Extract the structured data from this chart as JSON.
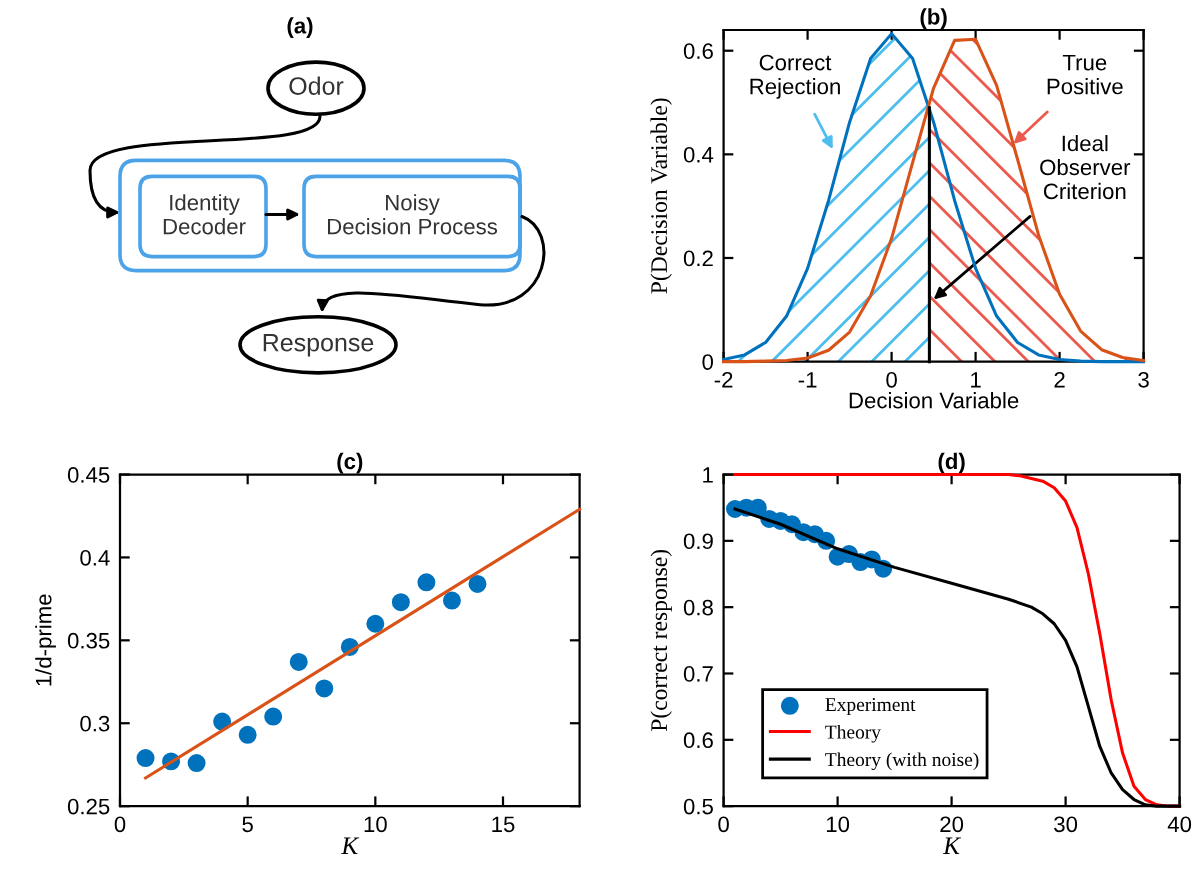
{
  "chart_data": [
    {
      "type": "other",
      "title": "(a)",
      "annotations": [
        "Odor",
        "Identity Decoder",
        "Noisy Decision Process",
        "Response"
      ]
    },
    {
      "type": "line",
      "title": "(b)",
      "xlabel": "Decision Variable",
      "ylabel": "P(Decision Variable)",
      "xlim": [
        -2,
        3
      ],
      "xticks": [
        -2,
        -1,
        0,
        1,
        2,
        3
      ],
      "ylim": [
        0,
        0.64
      ],
      "yticks": [
        0,
        0.2,
        0.4,
        0.6
      ],
      "grid": false,
      "legend": false,
      "series": [
        {
          "type": "area",
          "color": "#4dbeee",
          "x": [
            -2,
            -1.75,
            -1.5,
            -1.25,
            -1,
            -0.75,
            -0.5,
            -0.25,
            0,
            0.25,
            0.45
          ],
          "values": [
            0.004,
            0.013,
            0.037,
            0.088,
            0.18,
            0.311,
            0.462,
            0.585,
            0.633,
            0.585,
            0.49
          ]
        },
        {
          "type": "area",
          "color": "#ec5a4f",
          "x": [
            0.45,
            0.5,
            0.75,
            1,
            1.25,
            1.5,
            1.75,
            2,
            2.25,
            2.5,
            2.75,
            3
          ],
          "values": [
            0.49,
            0.528,
            0.62,
            0.622,
            0.533,
            0.39,
            0.244,
            0.13,
            0.059,
            0.023,
            0.008,
            0.002
          ]
        },
        {
          "type": "line",
          "color": "#0072bd",
          "x": [
            -2,
            -1.75,
            -1.5,
            -1.25,
            -1,
            -0.75,
            -0.5,
            -0.25,
            0,
            0.25,
            0.5,
            0.75,
            1,
            1.25,
            1.5,
            1.75,
            2,
            2.25,
            2.5,
            3
          ],
          "values": [
            0.004,
            0.013,
            0.037,
            0.088,
            0.18,
            0.311,
            0.462,
            0.585,
            0.633,
            0.585,
            0.462,
            0.311,
            0.18,
            0.088,
            0.037,
            0.013,
            0.004,
            0.001,
            0,
            0
          ]
        },
        {
          "type": "line",
          "color": "#d95319",
          "x": [
            -2,
            -1.75,
            -1.5,
            -1.25,
            -1,
            -0.75,
            -0.5,
            -0.25,
            0,
            0.25,
            0.5,
            0.75,
            1,
            1.25,
            1.5,
            1.75,
            2,
            2.25,
            2.5,
            2.75,
            3
          ],
          "values": [
            0,
            0,
            0.001,
            0.002,
            0.007,
            0.022,
            0.057,
            0.127,
            0.238,
            0.384,
            0.528,
            0.62,
            0.622,
            0.533,
            0.39,
            0.244,
            0.13,
            0.059,
            0.023,
            0.008,
            0.002
          ]
        },
        {
          "type": "line",
          "color": "#000000",
          "x": [
            0.45,
            0.45
          ],
          "values": [
            0,
            0.49
          ]
        }
      ],
      "annotations": [
        {
          "text": "Correct\nRejection",
          "x": -0.7,
          "y": 0.41
        },
        {
          "text": "True\nPositive",
          "x": 1.45,
          "y": 0.42
        },
        {
          "text": "Ideal\nObserver\nCriterion",
          "x": 0.5,
          "y": 0.12
        }
      ]
    },
    {
      "type": "scatter",
      "title": "(c)",
      "xlabel": "K",
      "ylabel": "1/d-prime",
      "xlim": [
        0,
        18
      ],
      "xticks": [
        0,
        5,
        10,
        15
      ],
      "ylim": [
        0.25,
        0.45
      ],
      "yticks": [
        0.25,
        0.3,
        0.35,
        0.4,
        0.45
      ],
      "grid": false,
      "legend": false,
      "series": [
        {
          "type": "scatter",
          "marker": "circle",
          "color": "#0072bd",
          "x": [
            1,
            2,
            3,
            4,
            5,
            6,
            7,
            8,
            9,
            10,
            11,
            12,
            13,
            14
          ],
          "values": [
            0.279,
            0.277,
            0.276,
            0.301,
            0.293,
            0.304,
            0.337,
            0.321,
            0.346,
            0.36,
            0.373,
            0.385,
            0.374,
            0.384
          ]
        },
        {
          "type": "line",
          "color": "#d95319",
          "x": [
            1,
            18
          ],
          "values": [
            0.267,
            0.429
          ]
        }
      ]
    },
    {
      "type": "scatter",
      "title": "(d)",
      "xlabel": "K",
      "ylabel": "P(correct response)",
      "xlim": [
        0,
        40
      ],
      "xticks": [
        0,
        10,
        20,
        30,
        40
      ],
      "ylim": [
        0.5,
        1
      ],
      "yticks": [
        0.5,
        0.6,
        0.7,
        0.8,
        0.9,
        1
      ],
      "grid": false,
      "legend": "bottom left",
      "series": [
        {
          "name": "Experiment",
          "type": "scatter",
          "marker": "circle",
          "color": "#0072bd",
          "x": [
            1,
            2,
            3,
            4,
            5,
            6,
            7,
            8,
            9,
            10,
            11,
            12,
            13,
            14
          ],
          "values": [
            0.948,
            0.95,
            0.95,
            0.933,
            0.93,
            0.925,
            0.913,
            0.91,
            0.9,
            0.876,
            0.88,
            0.868,
            0.872,
            0.858
          ]
        },
        {
          "name": "Theory",
          "type": "line",
          "color": "#ff0000",
          "x": [
            1,
            10,
            20,
            25,
            26,
            28,
            29,
            30,
            31,
            32,
            33,
            34,
            35,
            36,
            37,
            38,
            39,
            40
          ],
          "values": [
            1,
            1,
            1,
            1,
            0.998,
            0.99,
            0.98,
            0.96,
            0.92,
            0.85,
            0.76,
            0.66,
            0.58,
            0.53,
            0.51,
            0.502,
            0.5,
            0.5
          ]
        },
        {
          "name": "Theory (with noise)",
          "type": "line",
          "color": "#000000",
          "x": [
            1,
            5,
            10,
            15,
            20,
            25,
            27,
            28,
            29,
            30,
            31,
            32,
            33,
            34,
            35,
            36,
            37,
            38,
            40
          ],
          "values": [
            0.948,
            0.925,
            0.888,
            0.86,
            0.836,
            0.812,
            0.8,
            0.79,
            0.775,
            0.75,
            0.71,
            0.65,
            0.59,
            0.55,
            0.525,
            0.51,
            0.502,
            0.5,
            0.5
          ]
        }
      ]
    }
  ]
}
